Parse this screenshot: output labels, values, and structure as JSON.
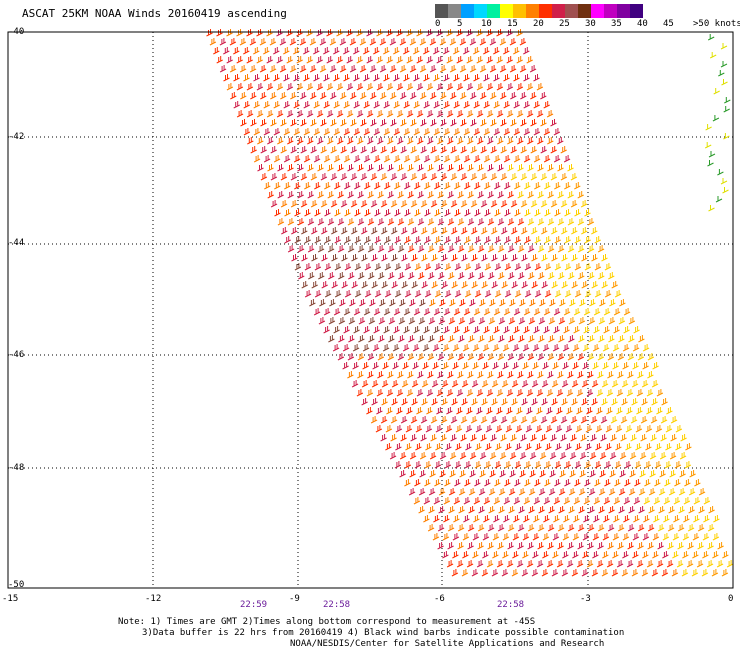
{
  "title": "ASCAT 25KM NOAA Winds 20160419 ascending",
  "legend": {
    "colors": [
      "#555555",
      "#888888",
      "#00a0ff",
      "#00d8ff",
      "#00f0a0",
      "#ffff00",
      "#ffc000",
      "#ff8000",
      "#ff3000",
      "#d0204a",
      "#a05050",
      "#703010",
      "#ff00ff",
      "#c000c0",
      "#8000a0",
      "#400080"
    ],
    "labels": [
      "0",
      "5",
      "10",
      "15",
      "20",
      "25",
      "30",
      "35",
      "40",
      "45",
      ">50 knots"
    ]
  },
  "lat_labels": [
    "-40",
    "-42",
    "-44",
    "-46",
    "-48",
    "-50"
  ],
  "lon_labels": [
    "-15",
    "-12",
    "-9",
    "-6",
    "-3",
    "0"
  ],
  "time_labels": [
    "22:59",
    "22:58",
    "22:58"
  ],
  "notes": {
    "line1": "Note: 1) Times are GMT 2)Times along bottom correspond to measurement at -45S",
    "line2": "3)Data buffer is 22 hrs from 20160419 4) Black wind barbs indicate possible contamination",
    "line3": "NOAA/NESDIS/Center for Satellite Applications and Research"
  }
}
